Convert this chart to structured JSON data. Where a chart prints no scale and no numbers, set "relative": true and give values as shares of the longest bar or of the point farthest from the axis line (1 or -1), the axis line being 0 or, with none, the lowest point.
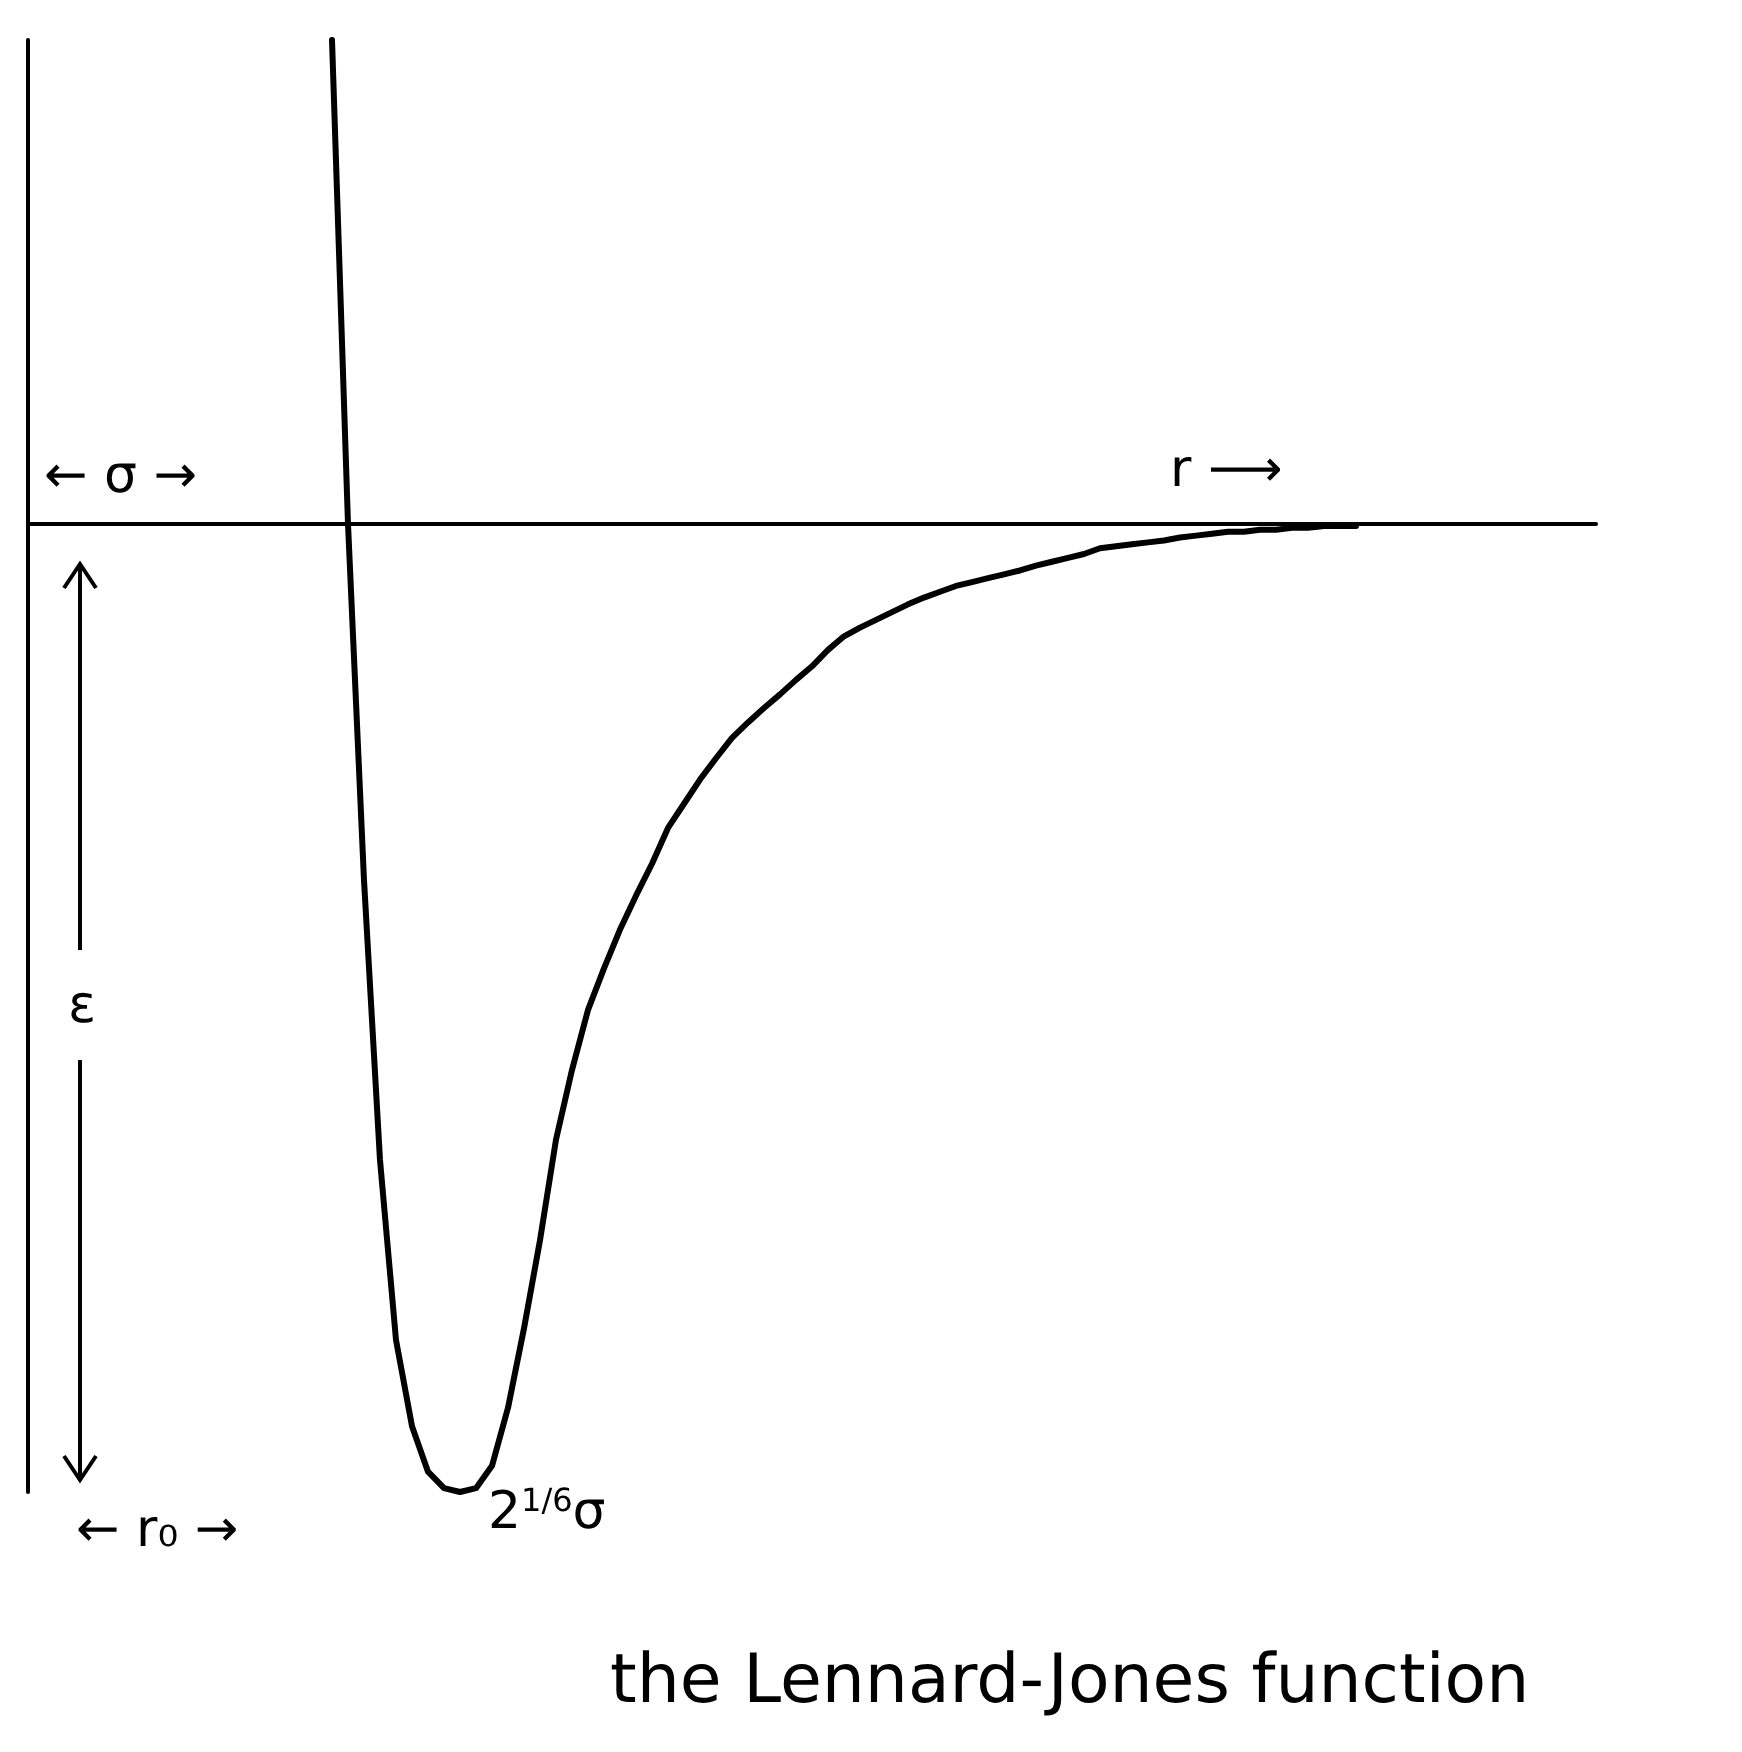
{
  "chart_data": {
    "type": "line",
    "title": "the Lennard-Jones function",
    "relative": true,
    "color": "#000000",
    "marker": "none",
    "line_style": "solid",
    "annotations": [
      "← σ →",
      "r ⟶",
      "ε",
      "← r₀ →",
      "2$^{1/6}$σ"
    ],
    "categories": [
      null,
      null,
      null,
      null,
      null,
      null,
      null,
      null,
      null,
      null,
      null,
      null,
      null,
      null,
      null,
      null,
      null,
      null,
      null,
      null,
      null,
      null,
      null,
      null,
      null,
      null,
      null,
      null,
      null,
      null,
      null,
      null,
      null,
      null,
      null,
      null,
      null,
      null,
      null,
      null,
      null,
      null,
      null,
      null,
      null,
      null,
      null,
      null,
      null,
      null,
      null,
      null,
      null,
      null,
      null,
      null,
      null,
      null,
      null,
      null,
      null,
      null,
      null,
      null,
      null,
      null,
      null,
      null,
      null,
      null,
      null,
      null,
      null,
      null,
      null,
      null,
      null,
      null,
      null,
      null,
      null,
      null,
      null,
      null,
      null,
      null,
      null,
      null,
      null,
      null,
      null,
      null,
      null,
      null,
      null,
      null,
      null,
      null,
      null
    ],
    "values": [
      null,
      null,
      null,
      null,
      null,
      null,
      null,
      null,
      null,
      null,
      null,
      null,
      null,
      null,
      null,
      null,
      null,
      null,
      null,
      0.5,
      0,
      -0.368,
      -0.657,
      -0.843,
      -0.932,
      -0.979,
      -0.996,
      -1,
      -0.996,
      -0.973,
      -0.913,
      -0.831,
      -0.74,
      -0.636,
      -0.564,
      -0.502,
      -0.459,
      -0.419,
      -0.384,
      -0.351,
      -0.314,
      -0.289,
      -0.264,
      -0.242,
      -0.221,
      -0.205,
      -0.19,
      -0.176,
      -0.161,
      -0.147,
      -0.13,
      -0.116,
      -0.107,
      -0.099,
      -0.091,
      -0.083,
      -0.076,
      -0.07,
      -0.064,
      -0.06,
      -0.056,
      -0.052,
      -0.048,
      -0.043,
      -0.039,
      -0.035,
      -0.031,
      -0.025,
      -0.023,
      -0.021,
      -0.019,
      -0.017,
      -0.014,
      -0.012,
      -0.01,
      -0.008,
      -0.008,
      -0.006,
      -0.006,
      -0.004,
      -0.004,
      -0.002,
      -0.002,
      -0.002,
      null,
      null,
      null,
      null,
      null,
      null,
      null,
      null,
      null,
      null,
      null,
      null,
      null,
      null,
      null
    ]
  }
}
